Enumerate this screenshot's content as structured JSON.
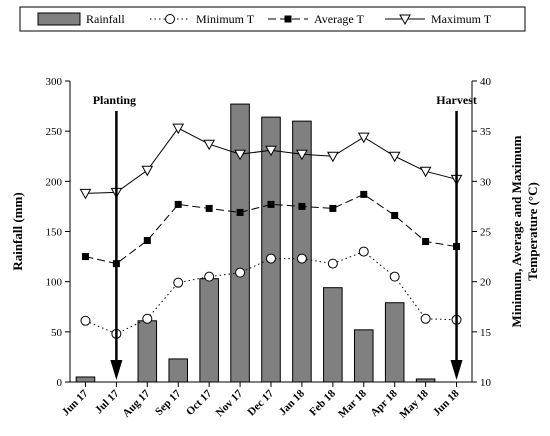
{
  "chart_data": {
    "type": "bar+line",
    "categories": [
      "Jun 17",
      "Jul 17",
      "Aug 17",
      "Sep 17",
      "Oct 17",
      "Nov 17",
      "Dec 17",
      "Jan 18",
      "Feb 18",
      "Mar 18",
      "Apr 18",
      "May 18",
      "Jun 18"
    ],
    "series": [
      {
        "name": "Rainfall",
        "type": "bar",
        "axis": "left",
        "color": "#808080",
        "values": [
          5,
          null,
          61,
          23,
          103,
          277,
          264,
          260,
          94,
          52,
          79,
          3,
          null
        ]
      },
      {
        "name": "Minimum T",
        "type": "line",
        "axis": "right",
        "marker": "open-circle",
        "dash": "dotted",
        "values": [
          16.1,
          14.8,
          16.3,
          19.9,
          20.5,
          20.9,
          22.3,
          22.3,
          21.8,
          23.0,
          20.5,
          16.3,
          16.2
        ]
      },
      {
        "name": "Average T",
        "type": "line",
        "axis": "right",
        "marker": "filled-square",
        "dash": "dashed",
        "values": [
          22.5,
          21.8,
          24.1,
          27.7,
          27.3,
          26.9,
          27.7,
          27.5,
          27.3,
          28.7,
          26.6,
          24.0,
          23.5
        ]
      },
      {
        "name": "Maximum T",
        "type": "line",
        "axis": "right",
        "marker": "open-triangle-down",
        "dash": "solid",
        "values": [
          28.8,
          28.9,
          31.1,
          35.3,
          33.7,
          32.7,
          33.1,
          32.7,
          32.5,
          34.4,
          32.5,
          31.0,
          30.2
        ]
      }
    ],
    "y_left": {
      "label": "Rainfall (mm)",
      "lim": [
        0,
        300
      ],
      "ticks": [
        0,
        50,
        100,
        150,
        200,
        250,
        300
      ]
    },
    "y_right": {
      "label_lines": [
        "Minimum, Average and Maximum",
        "Temperature (°C)"
      ],
      "lim": [
        10,
        40
      ],
      "ticks": [
        10,
        15,
        20,
        25,
        30,
        35,
        40
      ]
    },
    "annotations": [
      {
        "text": "Planting",
        "category": "Jul 17"
      },
      {
        "text": "Harvest",
        "category": "Jun 18"
      }
    ],
    "legend": {
      "placement": "top",
      "entries": [
        "Rainfall",
        "Minimum T",
        "Average T",
        "Maximum T"
      ]
    },
    "grid": false
  }
}
